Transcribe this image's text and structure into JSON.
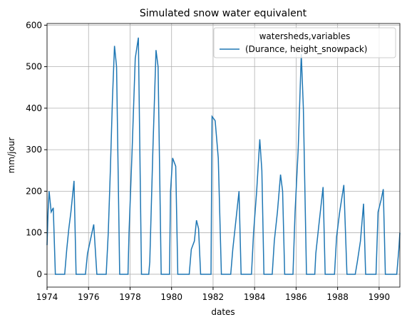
{
  "chart_data": {
    "type": "line",
    "title": "Simulated snow water equivalent",
    "x_label": "dates",
    "y_label": "mm/jour",
    "legend_title": "watersheds,variables",
    "legend_position": "upper right",
    "grid": true,
    "xlim": [
      1974,
      1991
    ],
    "xticks": [
      1974,
      1976,
      1978,
      1980,
      1982,
      1984,
      1986,
      1988,
      1990
    ],
    "ylim": [
      -31,
      604
    ],
    "yticks": [
      0,
      100,
      200,
      300,
      400,
      500,
      600
    ],
    "series": [
      {
        "name": "(Durance, height_snowpack)",
        "color": "#1f77b4",
        "x": [
          1974.0,
          1974.05,
          1974.1,
          1974.2,
          1974.3,
          1974.4,
          1974.85,
          1974.95,
          1975.05,
          1975.15,
          1975.3,
          1975.4,
          1975.85,
          1975.95,
          1976.1,
          1976.25,
          1976.4,
          1976.85,
          1976.95,
          1977.05,
          1977.15,
          1977.25,
          1977.35,
          1977.5,
          1977.9,
          1977.95,
          1978.1,
          1978.25,
          1978.4,
          1978.55,
          1978.9,
          1978.95,
          1979.1,
          1979.25,
          1979.35,
          1979.5,
          1979.9,
          1979.95,
          1980.05,
          1980.2,
          1980.3,
          1980.85,
          1980.95,
          1981.1,
          1981.2,
          1981.3,
          1981.4,
          1981.9,
          1981.95,
          1982.1,
          1982.25,
          1982.4,
          1982.85,
          1982.95,
          1983.1,
          1983.25,
          1983.35,
          1983.85,
          1983.95,
          1984.1,
          1984.25,
          1984.35,
          1984.45,
          1984.85,
          1984.95,
          1985.1,
          1985.25,
          1985.35,
          1985.45,
          1985.85,
          1985.95,
          1986.1,
          1986.25,
          1986.35,
          1986.5,
          1986.9,
          1986.95,
          1987.1,
          1987.3,
          1987.4,
          1987.85,
          1987.95,
          1988.1,
          1988.3,
          1988.45,
          1988.85,
          1988.95,
          1989.1,
          1989.25,
          1989.35,
          1989.85,
          1989.95,
          1990.1,
          1990.2,
          1990.3,
          1990.85,
          1990.95,
          1991.0
        ],
        "values": [
          70,
          150,
          200,
          150,
          160,
          0,
          0,
          60,
          110,
          150,
          225,
          0,
          0,
          50,
          85,
          120,
          0,
          0,
          100,
          250,
          420,
          550,
          500,
          0,
          0,
          100,
          300,
          520,
          570,
          0,
          0,
          30,
          300,
          540,
          500,
          0,
          0,
          200,
          280,
          260,
          0,
          0,
          60,
          80,
          130,
          110,
          0,
          0,
          380,
          370,
          280,
          0,
          0,
          60,
          130,
          200,
          0,
          0,
          100,
          200,
          325,
          250,
          0,
          0,
          80,
          150,
          240,
          200,
          0,
          0,
          150,
          300,
          530,
          400,
          0,
          0,
          50,
          120,
          210,
          0,
          0,
          90,
          150,
          215,
          0,
          0,
          30,
          80,
          170,
          0,
          0,
          150,
          180,
          205,
          0,
          0,
          60,
          100
        ]
      }
    ]
  }
}
